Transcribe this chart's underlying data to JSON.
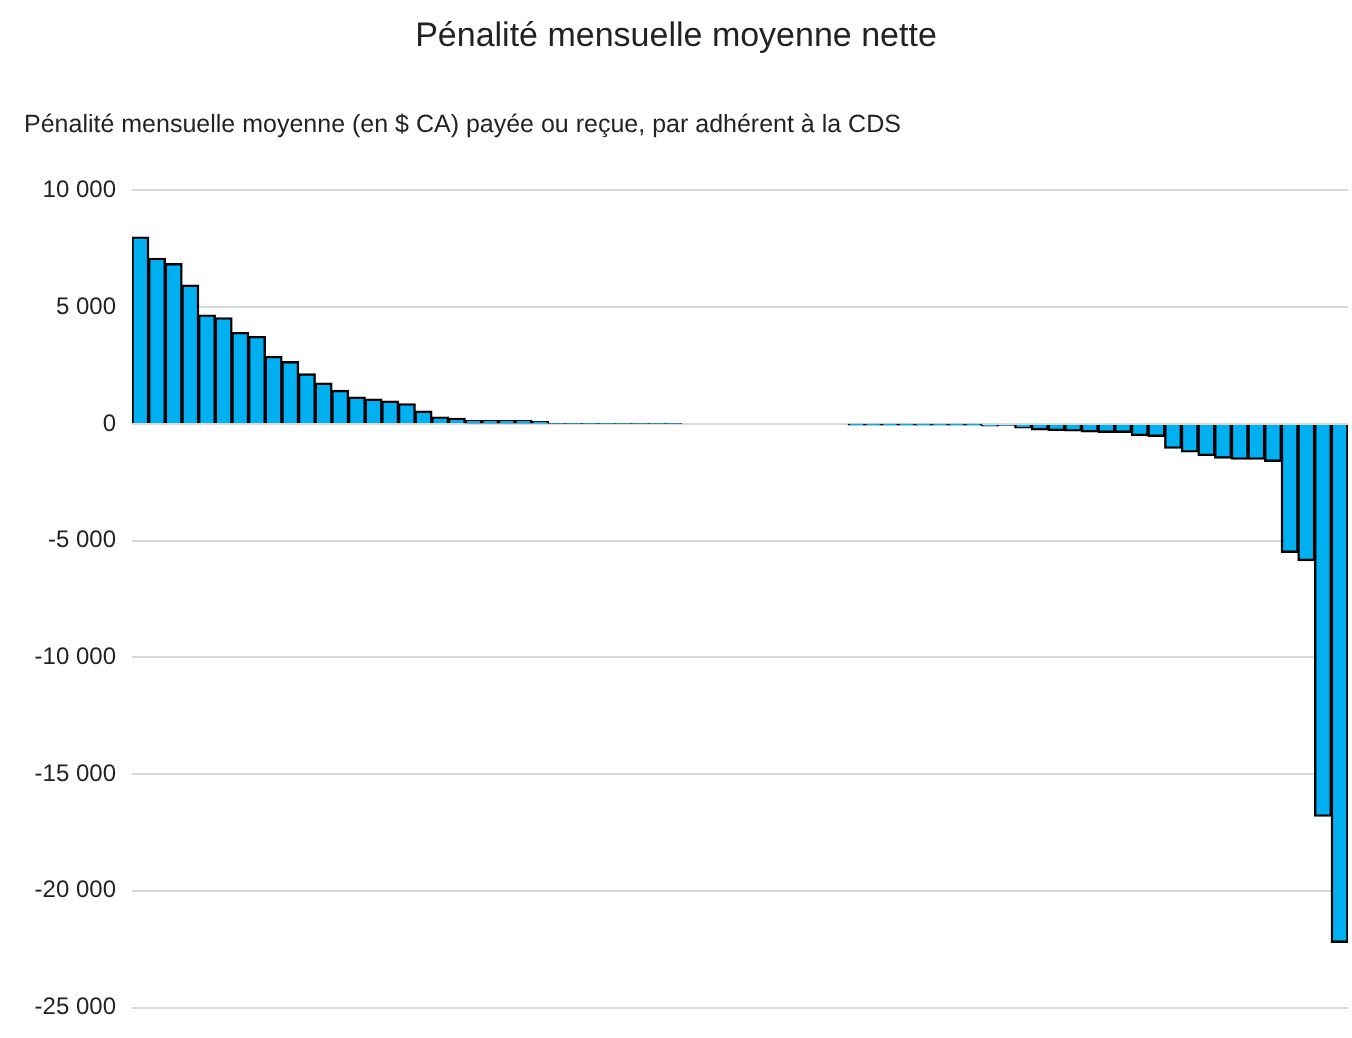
{
  "chart_data": {
    "type": "bar",
    "title": "Pénalité mensuelle moyenne nette",
    "ylabel": "Pénalité mensuelle moyenne (en $ CA) payée ou reçue, par adhérent à la CDS",
    "categories": [
      null,
      null,
      null,
      null,
      null,
      null,
      null,
      null,
      null,
      null,
      null,
      null,
      null,
      null,
      null,
      null,
      null,
      null,
      null,
      null,
      null,
      null,
      null,
      null,
      null,
      null,
      null,
      null,
      null,
      null,
      null,
      null,
      null,
      null,
      null,
      null,
      null,
      null,
      null,
      null,
      null,
      null,
      null,
      null,
      null,
      null,
      null,
      null,
      null,
      null,
      null,
      null,
      null,
      null,
      null,
      null,
      null,
      null,
      null,
      null,
      null,
      null,
      null,
      null,
      null,
      null,
      null,
      null,
      null,
      null,
      null,
      null,
      null
    ],
    "values": [
      8000,
      7090,
      6860,
      5940,
      4660,
      4540,
      3910,
      3740,
      2890,
      2660,
      2140,
      1740,
      1430,
      1140,
      1060,
      970,
      860,
      540,
      290,
      230,
      140,
      140,
      140,
      140,
      90,
      30,
      30,
      30,
      30,
      30,
      30,
      30,
      30,
      0,
      0,
      0,
      0,
      0,
      0,
      0,
      0,
      0,
      0,
      -20,
      -20,
      -20,
      -20,
      -20,
      -20,
      -20,
      -20,
      -80,
      -50,
      -170,
      -250,
      -280,
      -300,
      -340,
      -360,
      -360,
      -500,
      -530,
      -1040,
      -1200,
      -1350,
      -1460,
      -1510,
      -1510,
      -1600,
      -5500,
      -5850,
      -16800,
      -22200
    ],
    "color": "#00b0f0",
    "ylim": [
      -25000,
      10000
    ],
    "yticks": [
      {
        "value": -25000,
        "label": "-25 000"
      },
      {
        "value": -20000,
        "label": "-20 000"
      },
      {
        "value": -15000,
        "label": "-15 000"
      },
      {
        "value": -10000,
        "label": "-10 000"
      },
      {
        "value": -5000,
        "label": "-5 000"
      },
      {
        "value": 0,
        "label": "0"
      },
      {
        "value": 5000,
        "label": "5 000"
      },
      {
        "value": 10000,
        "label": "10 000"
      }
    ],
    "grid": "y",
    "legend": false
  }
}
